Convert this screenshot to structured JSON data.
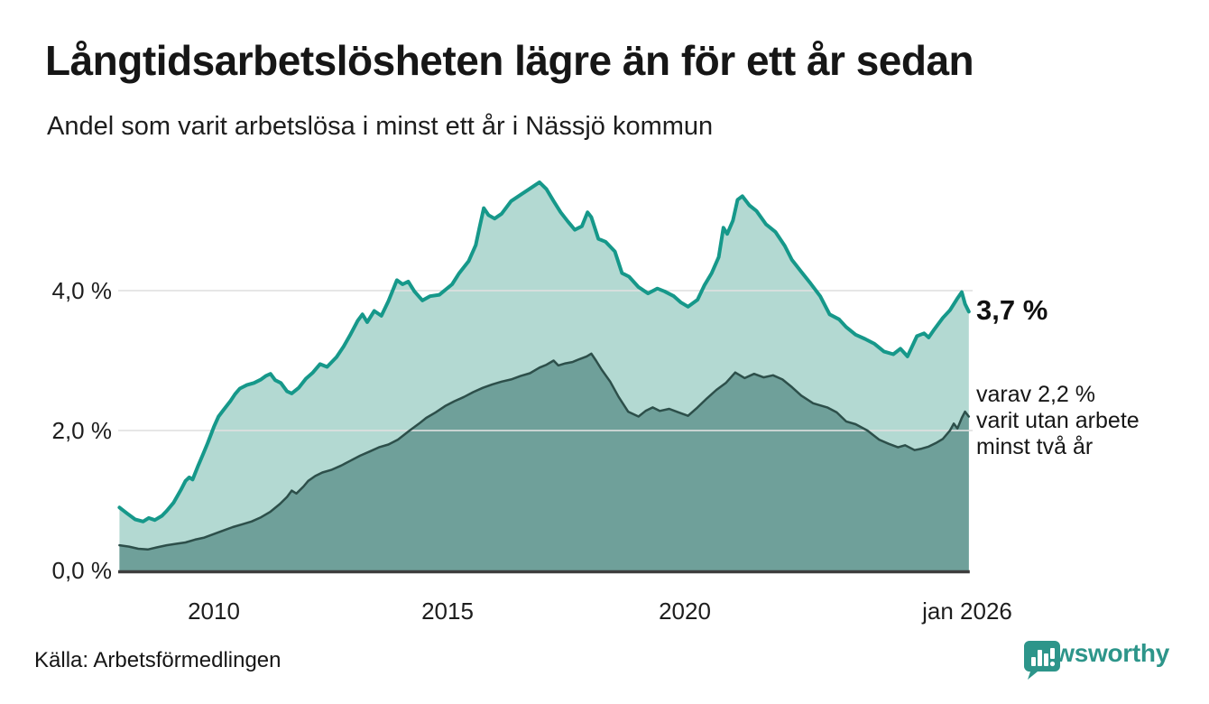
{
  "header": {
    "title": "Långtidsarbetslösheten lägre än för ett år sedan",
    "subtitle": "Andel som varit arbetslösa i minst ett år i Nässjö kommun"
  },
  "chart": {
    "y_axis": {
      "ticks": [
        {
          "label": "4,0 %",
          "value": 4.0
        },
        {
          "label": "2,0 %",
          "value": 2.0
        },
        {
          "label": "0,0 %",
          "value": 0.0
        }
      ]
    },
    "x_axis": {
      "ticks": [
        {
          "label": "2010",
          "year": 2010
        },
        {
          "label": "2015",
          "year": 2015
        },
        {
          "label": "2020",
          "year": 2020
        },
        {
          "label": "jan 2026",
          "year": 2026
        }
      ]
    },
    "end_labels": {
      "primary": "3,7 %",
      "secondary_lines": [
        "varav 2,2 %",
        "varit utan arbete",
        "minst två år"
      ]
    },
    "colors": {
      "line_one_year": "#16988a",
      "fill_one_year": "#b3d9d2",
      "line_two_years": "#2d4f4a",
      "fill_two_years": "#6fa09a",
      "gridline": "#e0e0e0",
      "baseline": "#3d3d3d",
      "brand_teal": "#2d958a"
    }
  },
  "chart_data": {
    "type": "area",
    "x_unit": "decimal_year",
    "x_range": [
      2008.0,
      2026.0
    ],
    "ylim": [
      0,
      5.8
    ],
    "grid": "horizontal",
    "legend_position": "right-annotations",
    "title": "Långtidsarbetslösheten lägre än för ett år sedan",
    "subtitle": "Andel som varit arbetslösa i minst ett år i Nässjö kommun",
    "series": [
      {
        "name": "minst ett år",
        "end_label": "3,7 %",
        "end_value": 3.7,
        "points": [
          [
            2008.0,
            0.9
          ],
          [
            2008.17,
            0.81
          ],
          [
            2008.33,
            0.73
          ],
          [
            2008.5,
            0.7
          ],
          [
            2008.62,
            0.75
          ],
          [
            2008.75,
            0.72
          ],
          [
            2008.9,
            0.78
          ],
          [
            2009.0,
            0.85
          ],
          [
            2009.15,
            0.97
          ],
          [
            2009.3,
            1.15
          ],
          [
            2009.4,
            1.28
          ],
          [
            2009.48,
            1.33
          ],
          [
            2009.55,
            1.3
          ],
          [
            2009.67,
            1.5
          ],
          [
            2009.77,
            1.66
          ],
          [
            2009.87,
            1.82
          ],
          [
            2010.0,
            2.05
          ],
          [
            2010.1,
            2.2
          ],
          [
            2010.2,
            2.29
          ],
          [
            2010.35,
            2.42
          ],
          [
            2010.45,
            2.52
          ],
          [
            2010.55,
            2.6
          ],
          [
            2010.7,
            2.65
          ],
          [
            2010.85,
            2.68
          ],
          [
            2011.0,
            2.73
          ],
          [
            2011.1,
            2.78
          ],
          [
            2011.2,
            2.81
          ],
          [
            2011.3,
            2.72
          ],
          [
            2011.42,
            2.68
          ],
          [
            2011.55,
            2.56
          ],
          [
            2011.65,
            2.53
          ],
          [
            2011.8,
            2.61
          ],
          [
            2011.95,
            2.74
          ],
          [
            2012.1,
            2.83
          ],
          [
            2012.25,
            2.95
          ],
          [
            2012.4,
            2.91
          ],
          [
            2012.6,
            3.05
          ],
          [
            2012.75,
            3.2
          ],
          [
            2012.9,
            3.38
          ],
          [
            2013.05,
            3.57
          ],
          [
            2013.15,
            3.66
          ],
          [
            2013.25,
            3.55
          ],
          [
            2013.4,
            3.71
          ],
          [
            2013.55,
            3.64
          ],
          [
            2013.7,
            3.85
          ],
          [
            2013.88,
            4.15
          ],
          [
            2014.0,
            4.09
          ],
          [
            2014.12,
            4.13
          ],
          [
            2014.25,
            3.99
          ],
          [
            2014.42,
            3.86
          ],
          [
            2014.58,
            3.92
          ],
          [
            2014.78,
            3.94
          ],
          [
            2015.05,
            4.09
          ],
          [
            2015.2,
            4.25
          ],
          [
            2015.4,
            4.42
          ],
          [
            2015.55,
            4.65
          ],
          [
            2015.63,
            4.9
          ],
          [
            2015.72,
            5.18
          ],
          [
            2015.82,
            5.08
          ],
          [
            2015.95,
            5.03
          ],
          [
            2016.1,
            5.1
          ],
          [
            2016.3,
            5.28
          ],
          [
            2016.5,
            5.37
          ],
          [
            2016.7,
            5.46
          ],
          [
            2016.9,
            5.55
          ],
          [
            2017.05,
            5.45
          ],
          [
            2017.2,
            5.28
          ],
          [
            2017.35,
            5.12
          ],
          [
            2017.5,
            4.99
          ],
          [
            2017.65,
            4.87
          ],
          [
            2017.8,
            4.92
          ],
          [
            2017.92,
            5.12
          ],
          [
            2018.0,
            5.05
          ],
          [
            2018.15,
            4.74
          ],
          [
            2018.3,
            4.7
          ],
          [
            2018.5,
            4.56
          ],
          [
            2018.65,
            4.25
          ],
          [
            2018.8,
            4.2
          ],
          [
            2019.0,
            4.05
          ],
          [
            2019.2,
            3.96
          ],
          [
            2019.4,
            4.03
          ],
          [
            2019.55,
            3.99
          ],
          [
            2019.75,
            3.92
          ],
          [
            2019.9,
            3.83
          ],
          [
            2020.05,
            3.77
          ],
          [
            2020.25,
            3.87
          ],
          [
            2020.4,
            4.08
          ],
          [
            2020.55,
            4.25
          ],
          [
            2020.7,
            4.48
          ],
          [
            2020.8,
            4.9
          ],
          [
            2020.88,
            4.81
          ],
          [
            2021.0,
            5.0
          ],
          [
            2021.1,
            5.3
          ],
          [
            2021.2,
            5.35
          ],
          [
            2021.35,
            5.22
          ],
          [
            2021.5,
            5.14
          ],
          [
            2021.7,
            4.95
          ],
          [
            2021.9,
            4.84
          ],
          [
            2022.1,
            4.64
          ],
          [
            2022.25,
            4.44
          ],
          [
            2022.45,
            4.27
          ],
          [
            2022.65,
            4.1
          ],
          [
            2022.85,
            3.92
          ],
          [
            2023.05,
            3.66
          ],
          [
            2023.25,
            3.59
          ],
          [
            2023.4,
            3.48
          ],
          [
            2023.6,
            3.37
          ],
          [
            2023.8,
            3.31
          ],
          [
            2024.0,
            3.24
          ],
          [
            2024.2,
            3.13
          ],
          [
            2024.4,
            3.09
          ],
          [
            2024.55,
            3.17
          ],
          [
            2024.7,
            3.06
          ],
          [
            2024.9,
            3.35
          ],
          [
            2025.05,
            3.39
          ],
          [
            2025.15,
            3.33
          ],
          [
            2025.25,
            3.43
          ],
          [
            2025.45,
            3.61
          ],
          [
            2025.6,
            3.72
          ],
          [
            2025.75,
            3.88
          ],
          [
            2025.85,
            3.98
          ],
          [
            2025.92,
            3.81
          ],
          [
            2026.0,
            3.7
          ]
        ]
      },
      {
        "name": "minst två år",
        "end_label": "varav 2,2 % varit utan arbete minst två år",
        "end_value": 2.2,
        "points": [
          [
            2008.0,
            0.36
          ],
          [
            2008.2,
            0.34
          ],
          [
            2008.4,
            0.31
          ],
          [
            2008.6,
            0.3
          ],
          [
            2008.8,
            0.33
          ],
          [
            2009.0,
            0.36
          ],
          [
            2009.2,
            0.38
          ],
          [
            2009.4,
            0.4
          ],
          [
            2009.6,
            0.44
          ],
          [
            2009.8,
            0.47
          ],
          [
            2010.0,
            0.52
          ],
          [
            2010.2,
            0.57
          ],
          [
            2010.4,
            0.62
          ],
          [
            2010.6,
            0.66
          ],
          [
            2010.8,
            0.7
          ],
          [
            2011.0,
            0.76
          ],
          [
            2011.2,
            0.84
          ],
          [
            2011.4,
            0.95
          ],
          [
            2011.55,
            1.05
          ],
          [
            2011.65,
            1.14
          ],
          [
            2011.75,
            1.1
          ],
          [
            2011.9,
            1.2
          ],
          [
            2012.0,
            1.28
          ],
          [
            2012.15,
            1.35
          ],
          [
            2012.3,
            1.4
          ],
          [
            2012.5,
            1.44
          ],
          [
            2012.7,
            1.5
          ],
          [
            2012.9,
            1.57
          ],
          [
            2013.1,
            1.64
          ],
          [
            2013.3,
            1.7
          ],
          [
            2013.5,
            1.76
          ],
          [
            2013.7,
            1.8
          ],
          [
            2013.9,
            1.87
          ],
          [
            2014.15,
            2.0
          ],
          [
            2014.35,
            2.1
          ],
          [
            2014.5,
            2.18
          ],
          [
            2014.7,
            2.26
          ],
          [
            2014.9,
            2.35
          ],
          [
            2015.1,
            2.42
          ],
          [
            2015.3,
            2.48
          ],
          [
            2015.5,
            2.55
          ],
          [
            2015.7,
            2.61
          ],
          [
            2015.9,
            2.66
          ],
          [
            2016.1,
            2.7
          ],
          [
            2016.3,
            2.73
          ],
          [
            2016.5,
            2.78
          ],
          [
            2016.7,
            2.82
          ],
          [
            2016.9,
            2.9
          ],
          [
            2017.05,
            2.94
          ],
          [
            2017.2,
            3.0
          ],
          [
            2017.3,
            2.93
          ],
          [
            2017.45,
            2.96
          ],
          [
            2017.6,
            2.98
          ],
          [
            2017.75,
            3.02
          ],
          [
            2017.9,
            3.06
          ],
          [
            2018.0,
            3.1
          ],
          [
            2018.1,
            3.0
          ],
          [
            2018.22,
            2.87
          ],
          [
            2018.4,
            2.7
          ],
          [
            2018.58,
            2.48
          ],
          [
            2018.78,
            2.27
          ],
          [
            2019.0,
            2.2
          ],
          [
            2019.15,
            2.28
          ],
          [
            2019.3,
            2.33
          ],
          [
            2019.45,
            2.28
          ],
          [
            2019.65,
            2.31
          ],
          [
            2019.85,
            2.26
          ],
          [
            2020.05,
            2.21
          ],
          [
            2020.25,
            2.33
          ],
          [
            2020.45,
            2.46
          ],
          [
            2020.65,
            2.58
          ],
          [
            2020.85,
            2.68
          ],
          [
            2021.05,
            2.83
          ],
          [
            2021.25,
            2.75
          ],
          [
            2021.45,
            2.81
          ],
          [
            2021.65,
            2.76
          ],
          [
            2021.85,
            2.79
          ],
          [
            2022.05,
            2.73
          ],
          [
            2022.25,
            2.62
          ],
          [
            2022.45,
            2.5
          ],
          [
            2022.7,
            2.39
          ],
          [
            2023.0,
            2.33
          ],
          [
            2023.2,
            2.26
          ],
          [
            2023.4,
            2.13
          ],
          [
            2023.6,
            2.09
          ],
          [
            2023.85,
            2.0
          ],
          [
            2024.1,
            1.87
          ],
          [
            2024.3,
            1.81
          ],
          [
            2024.5,
            1.76
          ],
          [
            2024.65,
            1.79
          ],
          [
            2024.85,
            1.72
          ],
          [
            2025.0,
            1.74
          ],
          [
            2025.15,
            1.77
          ],
          [
            2025.3,
            1.82
          ],
          [
            2025.45,
            1.88
          ],
          [
            2025.6,
            2.0
          ],
          [
            2025.68,
            2.1
          ],
          [
            2025.76,
            2.03
          ],
          [
            2025.85,
            2.18
          ],
          [
            2025.92,
            2.27
          ],
          [
            2026.0,
            2.2
          ]
        ]
      }
    ]
  },
  "footer": {
    "source": "Källa: Arbetsförmedlingen",
    "brand": "Newsworthy"
  }
}
